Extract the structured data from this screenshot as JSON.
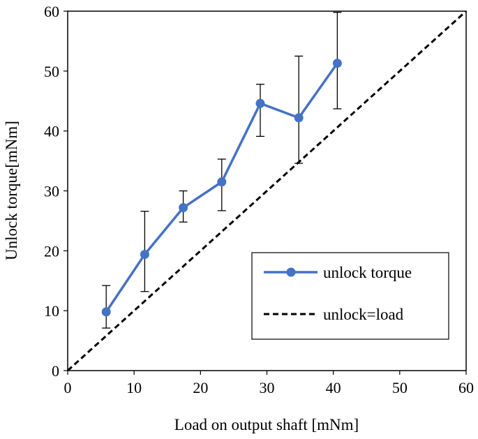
{
  "chart_data": {
    "type": "line",
    "title": "",
    "xlabel": "Load on output shaft [mNm]",
    "ylabel": "Unlock torque[mNm]",
    "xlim": [
      0,
      60
    ],
    "ylim": [
      0,
      60
    ],
    "xticks": [
      "0",
      "10",
      "20",
      "30",
      "40",
      "50",
      "60"
    ],
    "yticks": [
      "0",
      "10",
      "20",
      "30",
      "40",
      "50",
      "60"
    ],
    "grid": false,
    "legend_position": "bottom-right",
    "series": [
      {
        "name": "unlock torque",
        "color": "#4472C4",
        "marker": "circle",
        "x": [
          5.8,
          11.6,
          17.4,
          23.2,
          29.0,
          34.8,
          40.6
        ],
        "y": [
          9.8,
          19.4,
          27.2,
          31.5,
          44.6,
          42.2,
          51.3
        ],
        "error_low": [
          7.1,
          13.2,
          24.8,
          26.7,
          39.1,
          34.6,
          43.7
        ],
        "error_high": [
          14.2,
          26.6,
          30.0,
          35.3,
          47.8,
          52.5,
          59.8
        ]
      },
      {
        "name": "unlock=load",
        "color": "#000000",
        "style": "dashed",
        "x": [
          0,
          60
        ],
        "y": [
          0,
          60
        ]
      }
    ]
  }
}
